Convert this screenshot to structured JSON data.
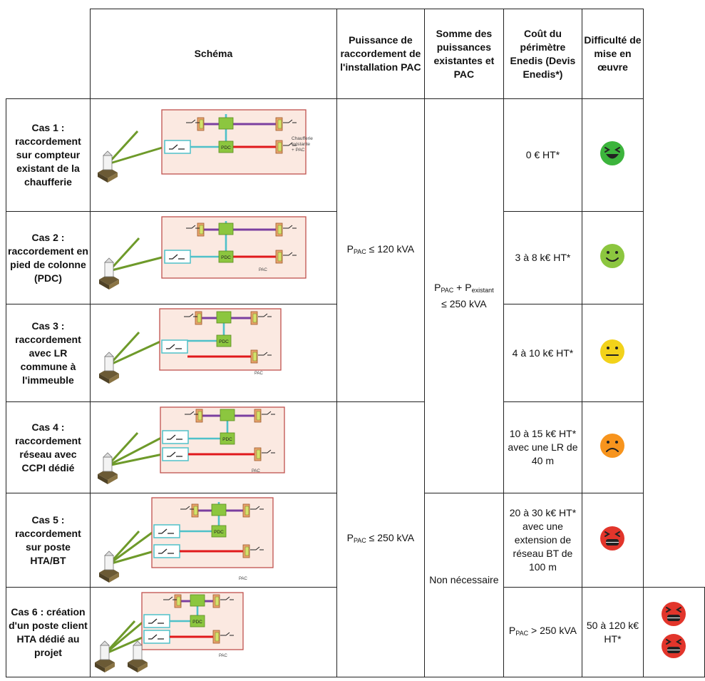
{
  "header": {
    "schema": "Schéma",
    "power": "Puissance de raccordement de l'installation PAC",
    "sum": "Somme des puissances existantes et PAC",
    "cost": "Coût du périmètre Enedis (Devis Enedis*)",
    "difficulty": "Difficulté de mise en œuvre"
  },
  "cases": [
    {
      "title": "Cas 1 : raccordement sur compteur existant de la chaufferie",
      "cost": "0 € HT*",
      "difficulty": "very-easy",
      "schema_note": "Chaufferie existante + PAC"
    },
    {
      "title": "Cas 2 : raccordement en pied de colonne (PDC)",
      "cost": "3 à 8 k€ HT*",
      "difficulty": "easy",
      "schema_note": "PAC"
    },
    {
      "title": "Cas 3 : raccordement avec LR commune à l'immeuble",
      "cost": "4 à 10 k€ HT*",
      "difficulty": "medium",
      "schema_note": "PAC"
    },
    {
      "title": "Cas 4 : raccordement réseau avec CCPI dédié",
      "cost": "10 à 15 k€ HT* avec une LR de 40 m",
      "difficulty": "hard",
      "schema_note": "PAC"
    },
    {
      "title": "Cas 5 : raccordement sur poste HTA/BT",
      "cost": "20 à 30 k€ HT* avec une extension de réseau BT de 100 m",
      "difficulty": "very-hard",
      "schema_note": "PAC"
    },
    {
      "title": "Cas 6 : création d'un poste client HTA dédié au projet",
      "cost": "50 à 120 k€ HT*",
      "difficulty": "very-hard-x2",
      "schema_note": "PAC"
    }
  ],
  "power_groups": [
    {
      "p": "P",
      "sub": "PAC",
      "rest": " ≤ 120 kVA"
    },
    {
      "p": "P",
      "sub": "PAC",
      "rest": " ≤ 250 kVA"
    },
    {
      "p": "P",
      "sub": "PAC",
      "rest": " > 250 kVA"
    }
  ],
  "sum_groups": [
    {
      "p1": "P",
      "sub1": "PAC",
      "mid": " + P",
      "sub2": "existant",
      "rest": "≤ 250 kVA"
    },
    {
      "text": "Non nécessaire"
    }
  ],
  "colors": {
    "very_easy": "#3cb43c",
    "easy": "#8cc63f",
    "medium": "#f2d21a",
    "hard": "#f7941d",
    "very_hard": "#e2352b",
    "diagram_bg": "#fbe9e1",
    "diagram_border": "#c0504d",
    "feeder": "#6e9a2a",
    "bus_purple": "#7b3fa0",
    "bus_cyan": "#4fc1c9",
    "bus_red": "#e0191b",
    "pdc_green": "#8cc63f"
  },
  "schema_labels": {
    "pdc": "PDC"
  }
}
